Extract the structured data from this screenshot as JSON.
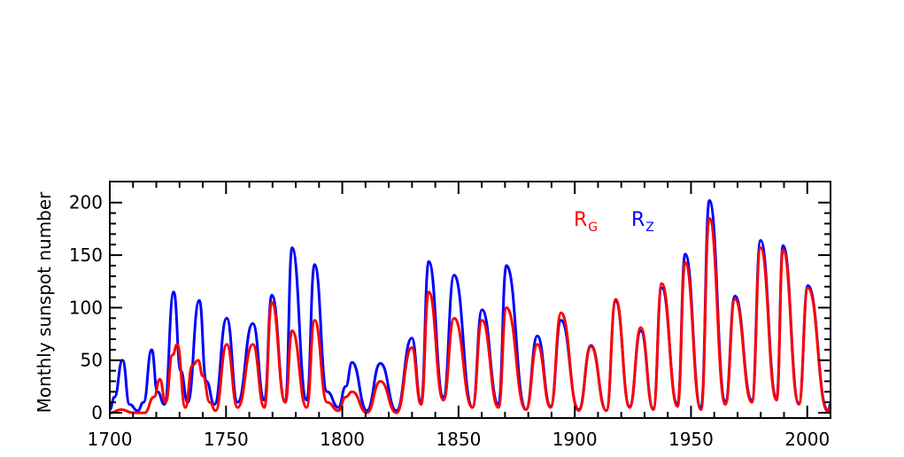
{
  "chart_data": {
    "type": "line",
    "ylabel": "Monthly sunspot number",
    "xlim": [
      1700,
      2010
    ],
    "ylim": [
      -5,
      220
    ],
    "xticks": [
      1700,
      1750,
      1800,
      1850,
      1900,
      1950,
      2000
    ],
    "xtick_labels": [
      "1700",
      "1750",
      "1800",
      "1850",
      "1900",
      "1950",
      "2000"
    ],
    "yticks": [
      0,
      50,
      100,
      150,
      200
    ],
    "ytick_labels": [
      "0",
      "50",
      "100",
      "150",
      "200"
    ],
    "grid": false,
    "legend_position": "top-center",
    "series": [
      {
        "name": "Rz",
        "label_main": "R",
        "label_sub": "Z",
        "color": "#0000ff",
        "x": [
          1700.0,
          1702.0,
          1705.5,
          1708.5,
          1712.0,
          1714.5,
          1718.0,
          1720.5,
          1723.5,
          1727.5,
          1730.5,
          1733.5,
          1738.5,
          1741.5,
          1745.0,
          1750.3,
          1755.0,
          1761.5,
          1766.5,
          1769.7,
          1775.5,
          1778.4,
          1784.7,
          1788.1,
          1793.5,
          1798.3,
          1801.5,
          1804.2,
          1810.6,
          1816.4,
          1823.3,
          1829.9,
          1833.9,
          1837.2,
          1843.5,
          1848.1,
          1856.0,
          1860.1,
          1867.2,
          1870.6,
          1879.0,
          1883.9,
          1889.6,
          1894.1,
          1901.7,
          1907.0,
          1913.6,
          1917.6,
          1923.6,
          1928.4,
          1933.8,
          1937.4,
          1944.2,
          1947.5,
          1954.3,
          1957.9,
          1964.8,
          1968.9,
          1976.2,
          1979.9,
          1986.8,
          1989.6,
          1996.4,
          2000.3,
          2008.9,
          2010.0
        ],
        "y": [
          3,
          15,
          50,
          8,
          2,
          10,
          60,
          20,
          8,
          115,
          40,
          10,
          107,
          30,
          8,
          90,
          10,
          85,
          12,
          112,
          10,
          157,
          12,
          141,
          20,
          5,
          25,
          48,
          2,
          47,
          2,
          71,
          10,
          144,
          15,
          131,
          5,
          98,
          8,
          140,
          3,
          73,
          6,
          88,
          3,
          64,
          2,
          106,
          6,
          78,
          4,
          119,
          8,
          151,
          4,
          202,
          11,
          111,
          12,
          164,
          14,
          159,
          9,
          121,
          2,
          8
        ]
      },
      {
        "name": "Rg",
        "label_main": "R",
        "label_sub": "G",
        "color": "#ff0000",
        "x": [
          1700.0,
          1705.0,
          1710.0,
          1715.0,
          1719.0,
          1721.5,
          1724.0,
          1727.0,
          1729.0,
          1732.5,
          1735.5,
          1738.0,
          1740.0,
          1743.0,
          1745.5,
          1750.3,
          1755.0,
          1761.5,
          1766.5,
          1769.7,
          1775.5,
          1778.4,
          1784.7,
          1788.1,
          1793.5,
          1798.3,
          1801.5,
          1804.2,
          1810.6,
          1816.4,
          1823.3,
          1829.9,
          1833.9,
          1837.2,
          1843.5,
          1848.1,
          1856.0,
          1860.1,
          1867.2,
          1870.6,
          1879.0,
          1883.9,
          1889.6,
          1894.1,
          1901.7,
          1907.0,
          1913.6,
          1917.6,
          1923.6,
          1928.4,
          1933.8,
          1937.4,
          1944.2,
          1947.5,
          1954.3,
          1957.9,
          1964.8,
          1968.9,
          1976.2,
          1979.9,
          1986.8,
          1989.6,
          1996.4,
          2000.3,
          2008.9,
          2010.0
        ],
        "y": [
          0,
          3,
          0,
          0,
          15,
          32,
          10,
          55,
          65,
          5,
          45,
          50,
          35,
          10,
          2,
          65,
          5,
          65,
          5,
          105,
          10,
          78,
          5,
          88,
          10,
          2,
          15,
          20,
          0,
          30,
          0,
          62,
          8,
          115,
          12,
          90,
          5,
          88,
          5,
          100,
          3,
          65,
          5,
          95,
          2,
          63,
          2,
          108,
          5,
          81,
          3,
          123,
          6,
          143,
          3,
          185,
          8,
          108,
          10,
          157,
          12,
          155,
          8,
          119,
          1,
          6
        ]
      }
    ]
  }
}
